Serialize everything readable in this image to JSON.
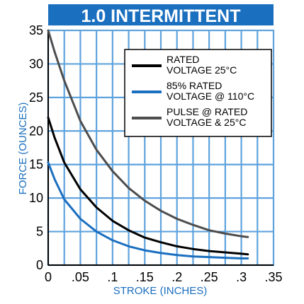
{
  "chart_data": {
    "type": "line",
    "title": "1.0 INTERMITTENT",
    "xlabel": "STROKE (INCHES)",
    "ylabel": "FORCE (OUNCES)",
    "xlim": [
      0,
      0.35
    ],
    "ylim": [
      0,
      35
    ],
    "x_ticks": [
      "0",
      ".05",
      ".1",
      ".15",
      ".2",
      ".25",
      ".3",
      ".35"
    ],
    "y_ticks": [
      "0",
      "5",
      "10",
      "15",
      "20",
      "25",
      "30",
      "35"
    ],
    "grid": true,
    "legend_position": "top-right",
    "colors": {
      "title_bg": "#1b6fbf",
      "title_text": "#ffffff",
      "axis_label": "#1b6fbf",
      "grid": "#5fa3dd"
    },
    "series": [
      {
        "name_lines": [
          "RATED",
          "VOLTAGE 25°C"
        ],
        "color": "#000000",
        "points": [
          [
            0,
            22
          ],
          [
            0.01,
            19
          ],
          [
            0.025,
            15.3
          ],
          [
            0.05,
            11.3
          ],
          [
            0.075,
            8.6
          ],
          [
            0.1,
            6.6
          ],
          [
            0.125,
            5.2
          ],
          [
            0.15,
            4.1
          ],
          [
            0.175,
            3.4
          ],
          [
            0.2,
            2.8
          ],
          [
            0.225,
            2.4
          ],
          [
            0.25,
            2.1
          ],
          [
            0.275,
            1.9
          ],
          [
            0.3,
            1.7
          ],
          [
            0.31,
            1.6
          ]
        ]
      },
      {
        "name_lines": [
          "85% RATED",
          "VOLTAGE @ 110°C"
        ],
        "color": "#1b6fbf",
        "points": [
          [
            0,
            15.3
          ],
          [
            0.01,
            12.8
          ],
          [
            0.025,
            9.8
          ],
          [
            0.05,
            6.9
          ],
          [
            0.075,
            5.0
          ],
          [
            0.1,
            3.7
          ],
          [
            0.125,
            2.8
          ],
          [
            0.15,
            2.2
          ],
          [
            0.175,
            1.8
          ],
          [
            0.2,
            1.5
          ],
          [
            0.225,
            1.3
          ],
          [
            0.25,
            1.2
          ],
          [
            0.275,
            1.1
          ],
          [
            0.3,
            1.0
          ],
          [
            0.31,
            1.0
          ]
        ]
      },
      {
        "name_lines": [
          "PULSE @ RATED",
          "VOLTAGE & 25°C"
        ],
        "color": "#4d4d4d",
        "points": [
          [
            0,
            35
          ],
          [
            0.01,
            31.8
          ],
          [
            0.025,
            27.5
          ],
          [
            0.05,
            21.5
          ],
          [
            0.075,
            17.2
          ],
          [
            0.1,
            14.0
          ],
          [
            0.125,
            11.5
          ],
          [
            0.15,
            9.6
          ],
          [
            0.175,
            8.1
          ],
          [
            0.2,
            6.9
          ],
          [
            0.225,
            6.0
          ],
          [
            0.25,
            5.2
          ],
          [
            0.275,
            4.7
          ],
          [
            0.3,
            4.3
          ],
          [
            0.31,
            4.2
          ]
        ]
      }
    ]
  }
}
